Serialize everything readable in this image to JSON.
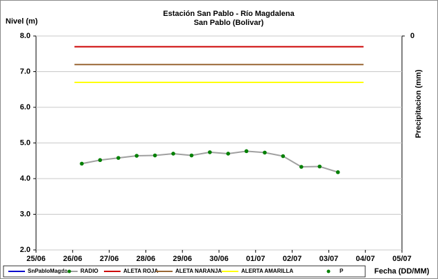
{
  "chart_data": {
    "type": "line",
    "title": "Estación San Pablo - Río Magdalena",
    "subtitle": "San Pablo (Bolivar)",
    "y_label": "Nivel (m)",
    "y2_label": "Precipitacion (mm)",
    "x_label": "Fecha (DD/MM)",
    "xlim": [
      0,
      10
    ],
    "xticks": [
      {
        "value": 0,
        "label": "25/06"
      },
      {
        "value": 1,
        "label": "26/06"
      },
      {
        "value": 2,
        "label": "27/06"
      },
      {
        "value": 3,
        "label": "28/06"
      },
      {
        "value": 4,
        "label": "29/06"
      },
      {
        "value": 5,
        "label": "30/06"
      },
      {
        "value": 6,
        "label": "01/07"
      },
      {
        "value": 7,
        "label": "02/07"
      },
      {
        "value": 8,
        "label": "03/07"
      },
      {
        "value": 9,
        "label": "04/07"
      },
      {
        "value": 10,
        "label": "05/07"
      }
    ],
    "ylim": [
      2,
      8
    ],
    "yticks": [
      {
        "value": 2,
        "label": "2.0"
      },
      {
        "value": 3,
        "label": "3.0"
      },
      {
        "value": 4,
        "label": "4.0"
      },
      {
        "value": 5,
        "label": "5.0"
      },
      {
        "value": 6,
        "label": "6.0"
      },
      {
        "value": 7,
        "label": "7.0"
      },
      {
        "value": 8,
        "label": "8.0"
      }
    ],
    "y2_inverted": true,
    "y2ticks": [
      0
    ],
    "grid": true,
    "series": [
      {
        "name": "SnPabloMagda",
        "color": "#0000cc",
        "style": "line",
        "x": [],
        "values": []
      },
      {
        "name": "RADIO",
        "color": "#a0a0a0",
        "marker_color": "#008000",
        "style": "line-marker",
        "x": [
          1.25,
          1.75,
          2.25,
          2.75,
          3.25,
          3.75,
          4.25,
          4.75,
          5.25,
          5.75,
          6.25,
          6.75,
          7.25,
          7.75,
          8.25
        ],
        "values": [
          4.42,
          4.52,
          4.58,
          4.64,
          4.65,
          4.7,
          4.65,
          4.74,
          4.7,
          4.77,
          4.73,
          4.63,
          4.33,
          4.34,
          4.18
        ]
      },
      {
        "name": "ALETA ROJA",
        "color": "#cc0000",
        "style": "line",
        "x": [
          1.05,
          8.95
        ],
        "values": [
          7.7,
          7.7
        ]
      },
      {
        "name": "ALETA NARANJA",
        "color": "#996633",
        "style": "line",
        "x": [
          1.05,
          8.95
        ],
        "values": [
          7.2,
          7.2
        ]
      },
      {
        "name": "ALERTA AMARILLA",
        "color": "#ffff00",
        "style": "line",
        "x": [
          1.05,
          8.95
        ],
        "values": [
          6.7,
          6.7
        ]
      },
      {
        "name": "P",
        "color": "#008000",
        "style": "marker",
        "x": [],
        "values": []
      }
    ]
  }
}
